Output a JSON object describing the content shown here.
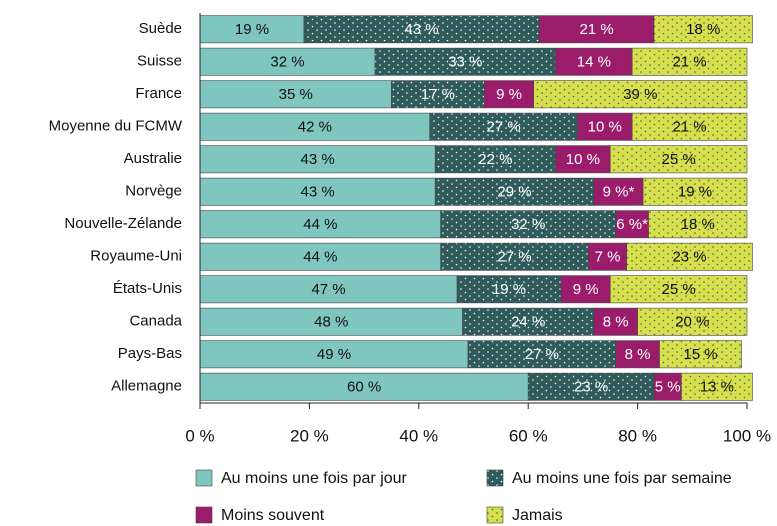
{
  "chart_data": {
    "type": "stacked-bar",
    "categories": [
      "Suède",
      "Suisse",
      "France",
      "Moyenne du FCMW",
      "Australie",
      "Norvège",
      "Nouvelle-Zélande",
      "Royaume-Uni",
      "États-Unis",
      "Canada",
      "Pays-Bas",
      "Allemagne"
    ],
    "series": [
      {
        "name": "Au moins une fois par jour",
        "color": "#7fc5c0",
        "values": [
          19,
          32,
          35,
          42,
          43,
          43,
          44,
          44,
          47,
          48,
          49,
          60
        ],
        "value_labels": [
          "19 %",
          "32 %",
          "35 %",
          "42 %",
          "43 %",
          "43 %",
          "44 %",
          "44 %",
          "47 %",
          "48 %",
          "49 %",
          "60 %"
        ]
      },
      {
        "name": "Au moins une fois par semaine",
        "color": "#2f5b5b",
        "values": [
          43,
          33,
          17,
          27,
          22,
          29,
          32,
          27,
          19,
          24,
          27,
          23
        ],
        "value_labels": [
          "43 %",
          "33 %",
          "17 %",
          "27 %",
          "22 %",
          "29 %",
          "32 %",
          "27 %",
          "19 %",
          "24 %",
          "27 %",
          "23 %"
        ]
      },
      {
        "name": "Moins souvent",
        "color": "#9b1c6a",
        "values": [
          21,
          14,
          9,
          10,
          10,
          9,
          6,
          7,
          9,
          8,
          8,
          5
        ],
        "value_labels": [
          "21 %",
          "14 %",
          "9 %",
          "10 %",
          "10 %",
          "9 %*",
          "6 %*",
          "7 %",
          "9 %",
          "8 %",
          "8 %",
          "5 %"
        ]
      },
      {
        "name": "Jamais",
        "color": "#d5e04c",
        "values": [
          18,
          21,
          39,
          21,
          25,
          19,
          18,
          23,
          25,
          20,
          15,
          13
        ],
        "value_labels": [
          "18 %",
          "21 %",
          "39 %",
          "21 %",
          "25 %",
          "19 %",
          "18 %",
          "23 %",
          "25 %",
          "20 %",
          "15 %",
          "13 %"
        ]
      }
    ],
    "xlim": [
      0,
      100
    ],
    "xticks": [
      {
        "value": 0,
        "label": "0 %"
      },
      {
        "value": 20,
        "label": "20 %"
      },
      {
        "value": 40,
        "label": "40 %"
      },
      {
        "value": 60,
        "label": "60 %"
      },
      {
        "value": 80,
        "label": "80 %"
      },
      {
        "value": 100,
        "label": "100 %"
      }
    ]
  }
}
